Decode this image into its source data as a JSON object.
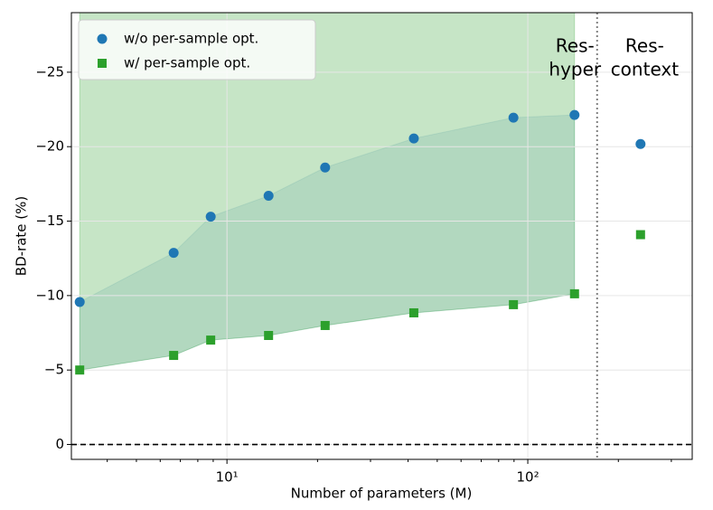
{
  "chart_data": {
    "type": "scatter",
    "xlabel": "Number of parameters (M)",
    "ylabel": "BD-rate (%)",
    "xscale": "log",
    "xlim": [
      3.04,
      352
    ],
    "ylim": [
      1,
      -29
    ],
    "xticks": [
      {
        "value": 10,
        "label": "10¹"
      },
      {
        "value": 100,
        "label": "10²"
      }
    ],
    "xminorticks": [
      4,
      5,
      6,
      7,
      8,
      9,
      20,
      30,
      40,
      50,
      60,
      70,
      80,
      90,
      200,
      300
    ],
    "yticks": [
      0,
      {
        "value": -5,
        "label": "−5"
      },
      {
        "value": -10,
        "label": "−10"
      },
      {
        "value": -15,
        "label": "−15"
      },
      {
        "value": -20,
        "label": "−20"
      },
      {
        "value": -25,
        "label": "−25"
      }
    ],
    "grid": true,
    "hline": 0,
    "vline": 170,
    "legend": "upper left",
    "x": [
      3.24,
      6.65,
      8.83,
      13.75,
      21.2,
      41.8,
      89.6,
      143,
      237
    ],
    "series": [
      {
        "name": "w/o per-sample opt.",
        "color": "#1f77b4",
        "marker": "circle",
        "values": [
          -9.57,
          -12.87,
          -15.3,
          -16.7,
          -18.6,
          -20.55,
          -21.95,
          -22.13,
          -20.18
        ]
      },
      {
        "name": "w/ per-sample opt.",
        "color": "#2ca02c",
        "marker": "square",
        "values": [
          -5.0,
          -5.98,
          -7.01,
          -7.32,
          -7.99,
          -8.84,
          -9.39,
          -10.12,
          -14.09
        ]
      }
    ],
    "annotations": [
      [
        "Res-",
        "hyper"
      ],
      [
        "Res-",
        "context"
      ]
    ]
  }
}
